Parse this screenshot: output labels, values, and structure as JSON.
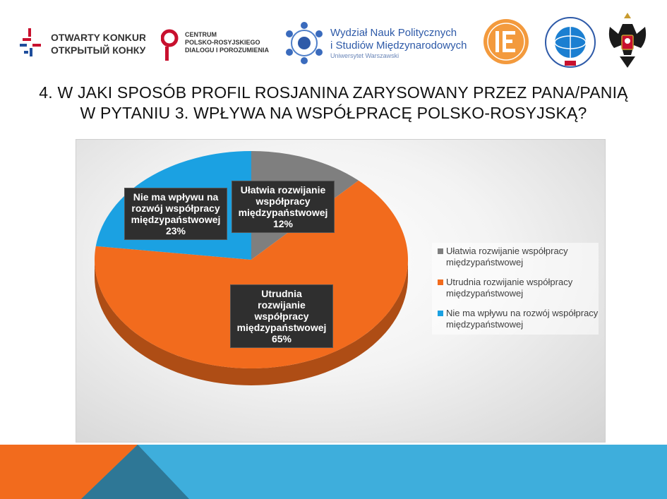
{
  "logos": {
    "otwarty_line1": "OTWARTY KONKURS",
    "otwarty_line2": "ОТКРЫТЫЙ КОНКУРС",
    "centrum_line1": "CENTRUM",
    "centrum_line2": "POLSKO-ROSYJSKIEGO",
    "centrum_line3": "DIALOGU I POROZUMIENIA",
    "wydzial_line1": "Wydział Nauk Politycznych",
    "wydzial_line2": "i Studiów Międzynarodowych",
    "wydzial_line3": "Uniwersytet Warszawski"
  },
  "title": {
    "line1": "4. W JAKI SPOSÓB PROFIL ROSJANINA ZARYSOWANY PRZEZ PANA/PANIĄ",
    "line2": "W PYTANIU 3. WPŁYWA NA WSPÓŁPRACĘ POLSKO-ROSYJSKĄ?"
  },
  "chart_data": {
    "type": "pie",
    "title": "",
    "categories": [
      "Ułatwia rozwijanie współpracy międzypaństwowej",
      "Utrudnia rozwijanie współpracy międzypaństwowej",
      "Nie ma wpływu na rozwój współpracy międzypaństwowej"
    ],
    "values": [
      12,
      65,
      23
    ],
    "colors": [
      "#7f7f7f",
      "#f26b1d",
      "#1ba1e2"
    ],
    "data_labels": [
      {
        "lines": [
          "Ułatwia rozwijanie",
          "współpracy",
          "międzypaństwowej"
        ],
        "value": "12%"
      },
      {
        "lines": [
          "Utrudnia",
          "rozwijanie",
          "współpracy",
          "międzypaństwowej"
        ],
        "value": "65%"
      },
      {
        "lines": [
          "Nie ma wpływu na",
          "rozwój współpracy",
          "międzypaństwowej"
        ],
        "value": "23%"
      }
    ],
    "legend": {
      "placement": "right",
      "items": [
        "Ułatwia rozwijanie współpracy międzypaństwowej",
        "Utrudnia rozwijanie współpracy międzypaństwowej",
        "Nie ma wpływu na rozwój współpracy międzypaństwowej"
      ]
    }
  },
  "footer": {
    "colors": [
      "#f26b1d",
      "#3eaedc",
      "#2b6d8a"
    ]
  }
}
